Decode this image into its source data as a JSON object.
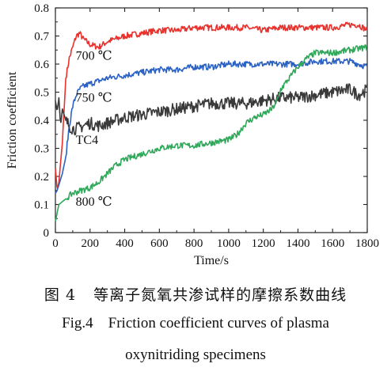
{
  "chart_data": {
    "type": "line",
    "xlabel": "Time/s",
    "ylabel": "Friction coefficient",
    "xlim": [
      0,
      1800
    ],
    "ylim": [
      0,
      0.8
    ],
    "xticks": [
      "0",
      "200",
      "400",
      "600",
      "800",
      "1000",
      "1200",
      "1400",
      "1600",
      "1800"
    ],
    "yticks": [
      "0",
      "0.1",
      "0.2",
      "0.3",
      "0.4",
      "0.5",
      "0.6",
      "0.7",
      "0.8"
    ],
    "grid": false,
    "legend": "none (labels placed next to curves)",
    "series": [
      {
        "name": "700 ℃",
        "color": "#e8322e",
        "x": [
          0,
          10,
          20,
          40,
          60,
          80,
          100,
          120,
          140,
          160,
          200,
          250,
          300,
          400,
          500,
          600,
          700,
          800,
          900,
          1000,
          1100,
          1200,
          1300,
          1400,
          1500,
          1600,
          1700,
          1750,
          1800
        ],
        "y": [
          0.23,
          0.15,
          0.18,
          0.32,
          0.55,
          0.62,
          0.66,
          0.7,
          0.71,
          0.69,
          0.67,
          0.66,
          0.68,
          0.7,
          0.71,
          0.72,
          0.72,
          0.73,
          0.73,
          0.73,
          0.73,
          0.72,
          0.73,
          0.73,
          0.73,
          0.73,
          0.74,
          0.74,
          0.72
        ]
      },
      {
        "name": "750 ℃",
        "color": "#2b62c4",
        "x": [
          0,
          10,
          20,
          40,
          60,
          80,
          100,
          120,
          140,
          160,
          200,
          250,
          300,
          400,
          500,
          600,
          700,
          800,
          900,
          1000,
          1100,
          1200,
          1300,
          1400,
          1500,
          1600,
          1700,
          1800
        ],
        "y": [
          0.14,
          0.15,
          0.17,
          0.21,
          0.27,
          0.38,
          0.45,
          0.49,
          0.51,
          0.52,
          0.53,
          0.54,
          0.55,
          0.56,
          0.57,
          0.58,
          0.58,
          0.59,
          0.59,
          0.6,
          0.6,
          0.6,
          0.6,
          0.6,
          0.61,
          0.61,
          0.61,
          0.59
        ]
      },
      {
        "name": "TC4",
        "color": "#3a3a3a",
        "x": [
          0,
          10,
          20,
          30,
          40,
          60,
          80,
          100,
          120,
          160,
          200,
          250,
          300,
          400,
          500,
          600,
          700,
          800,
          900,
          1000,
          1100,
          1200,
          1300,
          1400,
          1500,
          1600,
          1700,
          1750,
          1800
        ],
        "y": [
          0.47,
          0.43,
          0.48,
          0.38,
          0.44,
          0.4,
          0.38,
          0.37,
          0.37,
          0.38,
          0.39,
          0.38,
          0.39,
          0.41,
          0.42,
          0.43,
          0.44,
          0.45,
          0.46,
          0.46,
          0.46,
          0.47,
          0.48,
          0.48,
          0.49,
          0.5,
          0.51,
          0.49,
          0.51
        ]
      },
      {
        "name": "800 ℃",
        "color": "#2fa85a",
        "x": [
          0,
          20,
          40,
          60,
          100,
          150,
          200,
          250,
          300,
          350,
          400,
          450,
          500,
          600,
          700,
          800,
          900,
          1000,
          1050,
          1100,
          1150,
          1200,
          1250,
          1280,
          1300,
          1350,
          1400,
          1450,
          1500,
          1600,
          1700,
          1800
        ],
        "y": [
          0.04,
          0.1,
          0.11,
          0.12,
          0.14,
          0.15,
          0.16,
          0.18,
          0.21,
          0.24,
          0.26,
          0.27,
          0.28,
          0.3,
          0.31,
          0.31,
          0.32,
          0.33,
          0.35,
          0.39,
          0.41,
          0.42,
          0.44,
          0.47,
          0.51,
          0.55,
          0.59,
          0.62,
          0.64,
          0.64,
          0.65,
          0.66
        ]
      }
    ],
    "annotations": [
      {
        "text": "700 ℃",
        "x": 300,
        "y": 0.63
      },
      {
        "text": "750 ℃",
        "x": 300,
        "y": 0.48
      },
      {
        "text": "TC4",
        "x": 300,
        "y": 0.33
      },
      {
        "text": "800 ℃",
        "x": 300,
        "y": 0.11
      }
    ]
  },
  "caption": {
    "cn_number": "图 4",
    "cn_text": "等离子氮氧共渗试样的摩擦系数曲线",
    "en_line1": "Fig.4    Friction coefficient curves of plasma",
    "en_line2": "oxynitriding specimens"
  }
}
